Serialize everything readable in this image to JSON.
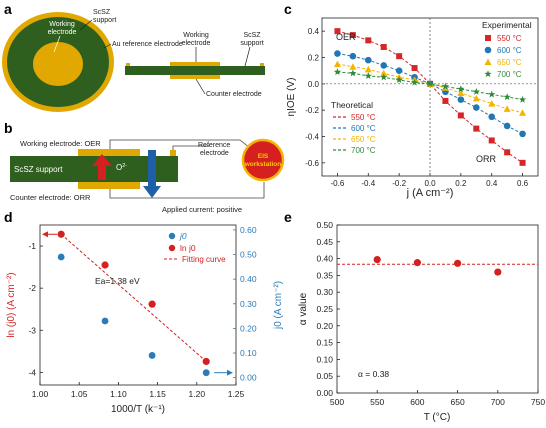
{
  "panel_labels": {
    "a": "a",
    "b": "b",
    "c": "c",
    "d": "d",
    "e": "e"
  },
  "panel_a": {
    "working_electrode": [
      "Working",
      "electrode"
    ],
    "scsz_support": [
      "ScSZ",
      "support"
    ],
    "au_reference": "Au reference electrode",
    "working_electrode_side": [
      "Working",
      "electrode"
    ],
    "scsz_support_side": [
      "ScSZ",
      "support"
    ],
    "counter_electrode": "Counter electrode"
  },
  "panel_b": {
    "working_oer": "Working  electrode: OER",
    "reference": [
      "Reference",
      "electrode"
    ],
    "eis": [
      "EIS",
      "workstation"
    ],
    "scsz": "ScSZ support",
    "oxide_ion": "O",
    "oxide_sup": "2-",
    "counter_orr": "Counter electrode: ORR",
    "applied_current": "Applied current: positive"
  },
  "colors": {
    "c550": "#d62728",
    "c600": "#1f77b4",
    "c650": "#f5b400",
    "c700": "#2e8b3e",
    "green_dark": "#2f5f1f",
    "gold": "#e0a800",
    "red_dot": "#d42020",
    "blue_dot": "#2b7bb9"
  },
  "chart_data": [
    {
      "id": "c",
      "type": "line",
      "xlabel": "j (A cm⁻²)",
      "ylabel": "ηIOE (V)",
      "xlim": [
        -0.7,
        0.7
      ],
      "ylim": [
        -0.7,
        0.5
      ],
      "xticks": [
        -0.6,
        -0.4,
        -0.2,
        0.0,
        0.2,
        0.4,
        0.6
      ],
      "xtick_labels": [
        "-0.6",
        "-0.4",
        "-0.2",
        "0.0",
        "0.2",
        "0.4",
        "0.6"
      ],
      "yticks": [
        -0.6,
        -0.4,
        -0.2,
        0.0,
        0.2,
        0.4
      ],
      "ytick_labels": [
        "-0.6",
        "-0.4",
        "-0.2",
        "0.0",
        "0.2",
        "0.4"
      ],
      "annotations": [
        "OER",
        "ORR"
      ],
      "legend_experimental": "Experimental",
      "legend_theoretical": "Theoretical",
      "series": [
        {
          "name": "550 °C",
          "theo_name": "550 °C",
          "marker": "square",
          "color": "#d62728",
          "x": [
            -0.6,
            -0.5,
            -0.4,
            -0.3,
            -0.2,
            -0.1,
            0.0,
            0.1,
            0.2,
            0.3,
            0.4,
            0.5,
            0.6
          ],
          "y": [
            0.4,
            0.37,
            0.33,
            0.28,
            0.21,
            0.12,
            0.0,
            -0.13,
            -0.24,
            -0.34,
            -0.43,
            -0.52,
            -0.6
          ]
        },
        {
          "name": "600 °C",
          "theo_name": "600 °C",
          "marker": "circle",
          "color": "#1f77b4",
          "x": [
            -0.6,
            -0.5,
            -0.4,
            -0.3,
            -0.2,
            -0.1,
            0.0,
            0.1,
            0.2,
            0.3,
            0.4,
            0.5,
            0.6
          ],
          "y": [
            0.23,
            0.21,
            0.18,
            0.14,
            0.1,
            0.05,
            0.0,
            -0.06,
            -0.12,
            -0.18,
            -0.25,
            -0.32,
            -0.38
          ]
        },
        {
          "name": "650 °C",
          "theo_name": "650 °C",
          "marker": "triangle",
          "color": "#f5b400",
          "x": [
            -0.6,
            -0.5,
            -0.4,
            -0.3,
            -0.2,
            -0.1,
            0.0,
            0.1,
            0.2,
            0.3,
            0.4,
            0.5,
            0.6
          ],
          "y": [
            0.15,
            0.13,
            0.11,
            0.08,
            0.05,
            0.03,
            0.0,
            -0.03,
            -0.07,
            -0.11,
            -0.15,
            -0.19,
            -0.22
          ]
        },
        {
          "name": "700 °C",
          "theo_name": "700 °C",
          "marker": "star",
          "color": "#2e8b3e",
          "x": [
            -0.6,
            -0.5,
            -0.4,
            -0.3,
            -0.2,
            -0.1,
            0.0,
            0.1,
            0.2,
            0.3,
            0.4,
            0.5,
            0.6
          ],
          "y": [
            0.09,
            0.08,
            0.06,
            0.05,
            0.03,
            0.01,
            0.0,
            -0.02,
            -0.04,
            -0.06,
            -0.08,
            -0.1,
            -0.12
          ]
        }
      ]
    },
    {
      "id": "d",
      "type": "scatter",
      "xlabel": "1000/T (k⁻¹)",
      "ylabel_left": "ln (j0) (A cm⁻²)",
      "ylabel_right": "j0 (A cm⁻²)",
      "xlim": [
        1.0,
        1.25
      ],
      "ylim_left": [
        -4.3,
        -0.5
      ],
      "ylim_right": [
        -0.03,
        0.62
      ],
      "xticks": [
        1.0,
        1.05,
        1.1,
        1.15,
        1.2,
        1.25
      ],
      "xtick_labels": [
        "1.00",
        "1.05",
        "1.10",
        "1.15",
        "1.20",
        "1.25"
      ],
      "yticks_left": [
        -1,
        -2,
        -3,
        -4
      ],
      "ytick_labels_left": [
        "-1",
        "-2",
        "-3",
        "-4"
      ],
      "yticks_right": [
        0.0,
        0.1,
        0.2,
        0.3,
        0.4,
        0.5,
        0.6
      ],
      "ytick_labels_right": [
        "0.00",
        "0.10",
        "0.20",
        "0.30",
        "0.40",
        "0.50",
        "0.60"
      ],
      "legend": [
        "j0",
        "ln j0",
        "Fitting curve"
      ],
      "annotation": "Ea=1.38 eV",
      "x": [
        1.027,
        1.083,
        1.143,
        1.212
      ],
      "ln_j0": [
        -0.72,
        -1.45,
        -2.38,
        -3.74
      ],
      "j0": [
        0.49,
        0.23,
        0.09,
        0.02
      ],
      "fit": {
        "x": [
          1.027,
          1.212
        ],
        "y": [
          -0.72,
          -3.74
        ]
      }
    },
    {
      "id": "e",
      "type": "scatter",
      "xlabel": "T (°C)",
      "ylabel": "α value",
      "xlim": [
        500,
        750
      ],
      "ylim": [
        0.0,
        0.5
      ],
      "xticks": [
        500,
        550,
        600,
        650,
        700,
        750
      ],
      "xtick_labels": [
        "500",
        "550",
        "600",
        "650",
        "700",
        "750"
      ],
      "yticks": [
        0.0,
        0.05,
        0.1,
        0.15,
        0.2,
        0.25,
        0.3,
        0.35,
        0.4,
        0.45,
        0.5
      ],
      "ytick_labels": [
        "0.00",
        "0.05",
        "0.10",
        "0.15",
        "0.20",
        "0.25",
        "0.30",
        "0.35",
        "0.40",
        "0.45",
        "0.50"
      ],
      "annotation": "α = 0.38",
      "ref_line": 0.383,
      "x": [
        550,
        600,
        650,
        700
      ],
      "y": [
        0.397,
        0.388,
        0.386,
        0.36
      ]
    }
  ]
}
